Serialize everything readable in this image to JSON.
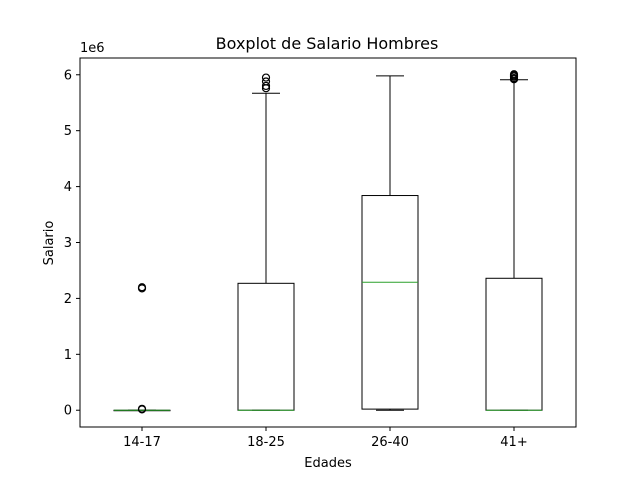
{
  "chart_data": {
    "type": "boxplot",
    "title": "Boxplot de Salario Hombres",
    "xlabel": "Edades",
    "ylabel": "Salario",
    "y_offset_label": "1e6",
    "y_unit_scale": 1000000,
    "ylim": [
      -300000,
      6300000
    ],
    "yticks": [
      0,
      1000000,
      2000000,
      3000000,
      4000000,
      5000000,
      6000000
    ],
    "ytick_labels": [
      "0",
      "1",
      "2",
      "3",
      "4",
      "5",
      "6"
    ],
    "grid": false,
    "colors": {
      "box": "#000000",
      "median": "#2ca02c",
      "flier": "#000000"
    },
    "categories": [
      "14-17",
      "18-25",
      "26-40",
      "41+"
    ],
    "boxes": [
      {
        "category": "14-17",
        "whislo": 0,
        "q1": 0,
        "median": 0,
        "q3": 0,
        "whishi": 0,
        "fliers": [
          15000,
          25000,
          2180000,
          2200000
        ]
      },
      {
        "category": "18-25",
        "whislo": 0,
        "q1": 0,
        "median": 0,
        "q3": 2270000,
        "whishi": 5670000,
        "fliers": [
          5760000,
          5800000,
          5880000,
          5950000
        ]
      },
      {
        "category": "26-40",
        "whislo": 0,
        "q1": 20000,
        "median": 2290000,
        "q3": 3840000,
        "whishi": 5980000,
        "fliers": []
      },
      {
        "category": "41+",
        "whislo": 0,
        "q1": 0,
        "median": 0,
        "q3": 2360000,
        "whishi": 5910000,
        "fliers": [
          5920000,
          5940000,
          5970000,
          5990000,
          6010000
        ]
      }
    ]
  }
}
